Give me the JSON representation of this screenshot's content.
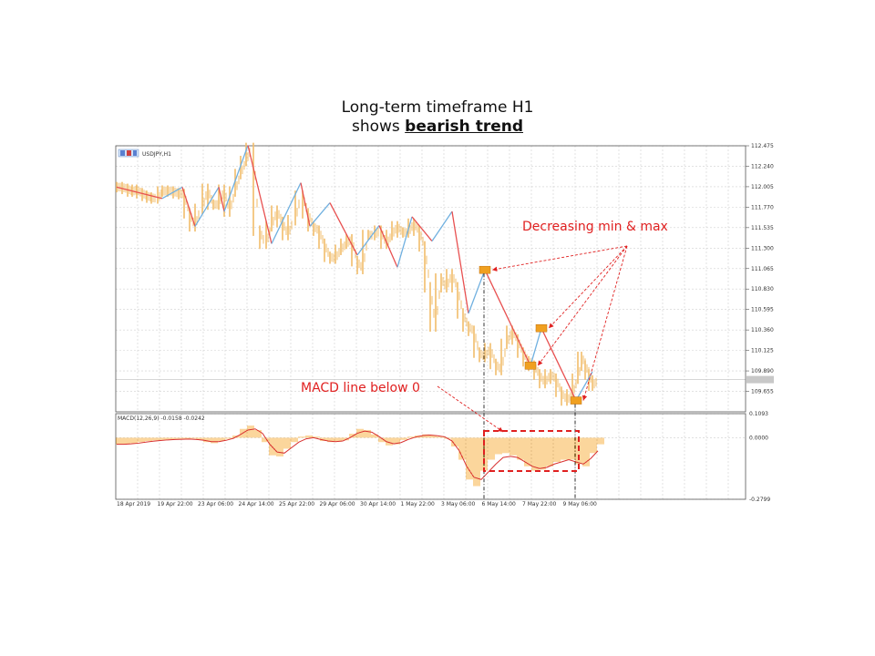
{
  "title": {
    "line1": "Long-term timeframe H1",
    "line2_prefix": "shows",
    "line2_emphasis": "bearish trend"
  },
  "chart_header": {
    "symbol": "USDJPY,H1",
    "macd_label": "MACD(12,26,9) -0.0158 -0.0242"
  },
  "annotations": {
    "minmax": "Decreasing min & max",
    "macd": "MACD line below 0"
  },
  "colors": {
    "candle": "#f2bd6b",
    "zigzag_down": "#e85050",
    "zigzag_up": "#70b0e0",
    "histogram": "#f7b34a",
    "macd_signal": "#d83030",
    "annotation": "#e02020",
    "marker": "#f0a020"
  },
  "chart_data": [
    {
      "type": "line",
      "title": "USDJPY,H1",
      "ylim": [
        109.42,
        112.475
      ],
      "y_ticks": [
        "112.475",
        "112.240",
        "112.005",
        "111.770",
        "111.535",
        "111.300",
        "111.065",
        "110.830",
        "110.595",
        "110.360",
        "110.125",
        "109.890",
        "109.655"
      ],
      "x_ticks": [
        "18 Apr 2019",
        "19 Apr 22:00",
        "23 Apr 06:00",
        "24 Apr 14:00",
        "25 Apr 22:00",
        "29 Apr 06:00",
        "30 Apr 14:00",
        "1 May 22:00",
        "3 May 06:00",
        "6 May 14:00",
        "7 May 22:00",
        "9 May 06:00"
      ],
      "x": [
        0,
        6,
        12,
        17,
        22,
        28,
        33,
        38,
        45,
        50,
        56,
        62,
        68,
        74,
        80,
        86,
        94,
        100,
        106,
        112,
        118,
        124,
        130,
        136,
        142,
        150,
        157,
        164,
        170,
        176,
        182,
        188,
        196,
        204,
        210,
        216,
        222,
        228,
        234,
        240,
        246,
        252,
        258,
        264,
        270,
        276,
        283,
        290,
        296,
        302,
        308,
        314,
        320,
        326,
        332,
        338,
        344,
        350,
        356,
        362,
        368,
        374,
        380,
        386,
        392,
        398,
        404,
        410,
        416,
        422,
        428,
        434,
        440,
        446,
        452,
        458,
        464,
        470,
        476,
        482,
        488,
        494,
        500,
        506,
        510,
        514,
        518,
        522
      ],
      "close": [
        112.0,
        111.98,
        111.95,
        111.97,
        111.93,
        111.9,
        111.88,
        111.87,
        111.95,
        111.96,
        111.95,
        111.93,
        111.92,
        111.7,
        111.55,
        111.75,
        111.98,
        111.8,
        111.8,
        111.97,
        111.72,
        111.95,
        112.15,
        112.3,
        112.45,
        111.5,
        111.35,
        111.55,
        111.73,
        111.6,
        111.45,
        111.62,
        111.9,
        111.7,
        111.55,
        111.5,
        111.35,
        111.2,
        111.18,
        111.28,
        111.35,
        111.4,
        111.15,
        111.06,
        111.45,
        111.45,
        111.5,
        111.35,
        111.45,
        111.55,
        111.48,
        111.48,
        111.58,
        111.5,
        111.32,
        110.85,
        110.4,
        110.95,
        110.85,
        111.0,
        110.85,
        110.55,
        110.4,
        110.35,
        110.1,
        110.05,
        110.15,
        109.97,
        109.9,
        110.2,
        110.35,
        110.25,
        110.1,
        110.0,
        109.95,
        109.85,
        109.75,
        109.85,
        109.8,
        109.65,
        109.55,
        109.62,
        109.8,
        110.05,
        109.95,
        109.85,
        109.72,
        109.78
      ],
      "zigzag": [
        {
          "x": 0,
          "y": 112.0,
          "dir": "down"
        },
        {
          "x": 50,
          "y": 111.87,
          "dir": "up"
        },
        {
          "x": 72,
          "y": 112.0,
          "dir": "down"
        },
        {
          "x": 86,
          "y": 111.55,
          "dir": "up"
        },
        {
          "x": 112,
          "y": 112.0,
          "dir": "down"
        },
        {
          "x": 118,
          "y": 111.72,
          "dir": "up"
        },
        {
          "x": 144,
          "y": 112.48,
          "dir": "down"
        },
        {
          "x": 170,
          "y": 111.35,
          "dir": "up"
        },
        {
          "x": 202,
          "y": 112.05,
          "dir": "down"
        },
        {
          "x": 212,
          "y": 111.55,
          "dir": "up"
        },
        {
          "x": 234,
          "y": 111.82,
          "dir": "down"
        },
        {
          "x": 264,
          "y": 111.22,
          "dir": "up"
        },
        {
          "x": 288,
          "y": 111.56,
          "dir": "down"
        },
        {
          "x": 308,
          "y": 111.08,
          "dir": "up"
        },
        {
          "x": 324,
          "y": 111.66,
          "dir": "down"
        },
        {
          "x": 346,
          "y": 111.38,
          "dir": "up"
        },
        {
          "x": 368,
          "y": 111.72,
          "dir": "down"
        },
        {
          "x": 386,
          "y": 110.55,
          "dir": "up"
        },
        {
          "x": 404,
          "y": 111.05,
          "dir": "down"
        },
        {
          "x": 454,
          "y": 109.95,
          "dir": "up"
        },
        {
          "x": 466,
          "y": 110.38,
          "dir": "down"
        },
        {
          "x": 504,
          "y": 109.55,
          "dir": "up"
        },
        {
          "x": 522,
          "y": 109.88,
          "dir": "none"
        }
      ],
      "markers": [
        {
          "x": 404,
          "y": 111.05
        },
        {
          "x": 454,
          "y": 109.95
        },
        {
          "x": 466,
          "y": 110.38
        },
        {
          "x": 504,
          "y": 109.55
        }
      ],
      "current_price_line": 109.79
    },
    {
      "type": "bar",
      "title": "MACD(12,26,9) -0.0158 -0.0242",
      "ylim": [
        -0.2799,
        0.1093
      ],
      "y_ticks": [
        "0.1093",
        "0.0000",
        "-0.2799"
      ],
      "x": [
        0,
        8,
        16,
        24,
        32,
        40,
        48,
        56,
        64,
        72,
        80,
        88,
        96,
        104,
        112,
        120,
        128,
        136,
        144,
        152,
        160,
        168,
        176,
        184,
        192,
        200,
        208,
        216,
        224,
        232,
        240,
        248,
        256,
        264,
        272,
        280,
        288,
        296,
        304,
        312,
        320,
        328,
        336,
        344,
        352,
        360,
        368,
        376,
        384,
        392,
        400,
        408,
        416,
        424,
        432,
        440,
        448,
        456,
        464,
        472,
        480,
        488,
        496,
        504,
        512,
        520,
        528
      ],
      "histogram": [
        -0.03,
        -0.03,
        -0.025,
        -0.02,
        -0.015,
        -0.012,
        -0.01,
        -0.008,
        -0.006,
        -0.005,
        -0.004,
        -0.01,
        -0.02,
        -0.025,
        -0.015,
        -0.005,
        0.01,
        0.04,
        0.055,
        0.035,
        -0.02,
        -0.08,
        -0.085,
        -0.05,
        -0.02,
        0.005,
        0.01,
        0.005,
        -0.015,
        -0.02,
        -0.018,
        -0.012,
        0.018,
        0.04,
        0.035,
        0.015,
        -0.02,
        -0.035,
        -0.03,
        -0.01,
        0.005,
        0.01,
        0.015,
        0.01,
        0.005,
        -0.005,
        -0.04,
        -0.1,
        -0.19,
        -0.22,
        -0.15,
        -0.1,
        -0.075,
        -0.07,
        -0.08,
        -0.1,
        -0.13,
        -0.15,
        -0.145,
        -0.13,
        -0.11,
        -0.1,
        -0.1,
        -0.12,
        -0.13,
        -0.07,
        -0.03
      ],
      "signal": [
        -0.03,
        -0.03,
        -0.028,
        -0.025,
        -0.02,
        -0.016,
        -0.013,
        -0.01,
        -0.008,
        -0.007,
        -0.006,
        -0.008,
        -0.012,
        -0.018,
        -0.018,
        -0.012,
        -0.003,
        0.015,
        0.035,
        0.04,
        0.02,
        -0.03,
        -0.065,
        -0.07,
        -0.045,
        -0.02,
        -0.005,
        0.0,
        -0.008,
        -0.015,
        -0.018,
        -0.015,
        0.0,
        0.02,
        0.03,
        0.025,
        0.005,
        -0.018,
        -0.028,
        -0.022,
        -0.008,
        0.003,
        0.01,
        0.012,
        0.009,
        0.004,
        -0.015,
        -0.06,
        -0.13,
        -0.18,
        -0.19,
        -0.155,
        -0.12,
        -0.09,
        -0.085,
        -0.09,
        -0.11,
        -0.13,
        -0.14,
        -0.135,
        -0.12,
        -0.11,
        -0.1,
        -0.11,
        -0.12,
        -0.095,
        -0.06
      ]
    }
  ]
}
